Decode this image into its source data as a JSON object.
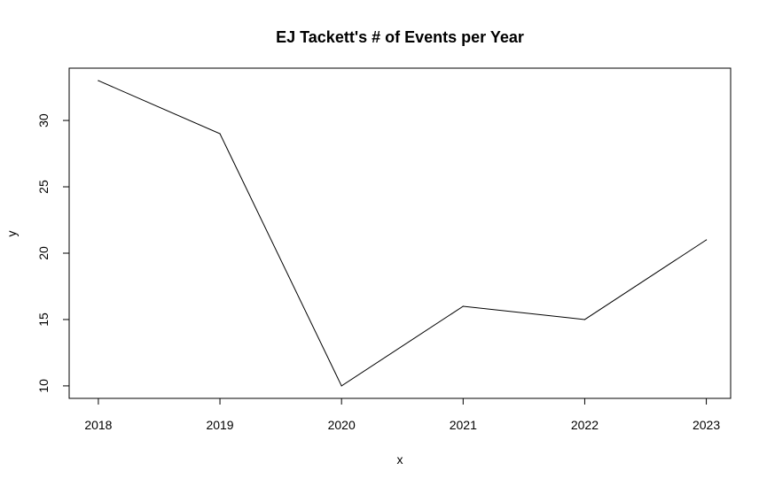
{
  "chart_data": {
    "type": "line",
    "title": "EJ Tackett's # of Events per Year",
    "xlabel": "x",
    "ylabel": "y",
    "x": [
      2018,
      2019,
      2020,
      2021,
      2022,
      2023
    ],
    "values": [
      33,
      29,
      10,
      16,
      15,
      21
    ],
    "xticks": [
      "2018",
      "2019",
      "2020",
      "2021",
      "2022",
      "2023"
    ],
    "yticks": [
      "10",
      "15",
      "20",
      "25",
      "30"
    ],
    "xlim": [
      2017.76,
      2023.2
    ],
    "ylim": [
      9.06,
      33.94
    ],
    "grid": false,
    "legend": "none",
    "colors": {
      "line": "#000000",
      "frame": "#000000"
    }
  }
}
